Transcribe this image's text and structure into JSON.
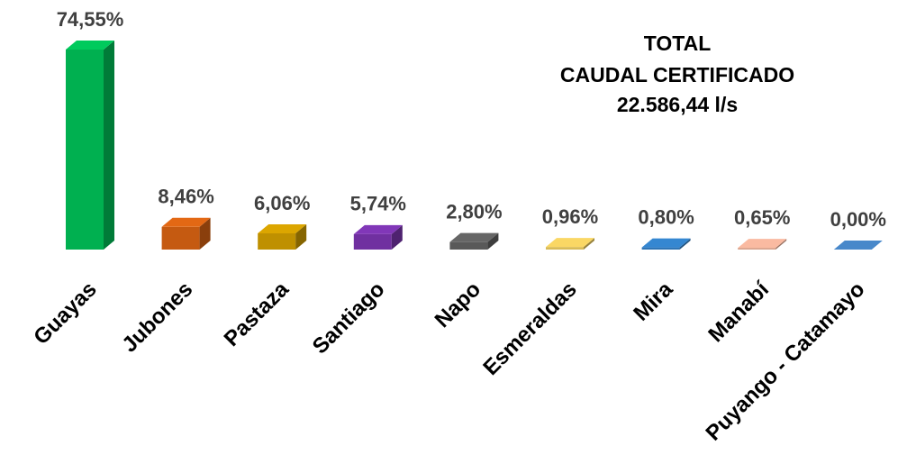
{
  "chart_data": {
    "type": "bar3d",
    "title_lines": [
      "TOTAL",
      "CAUDAL CERTIFICADO",
      "22.586,44 l/s"
    ],
    "categories": [
      "Guayas",
      "Jubones",
      "Pastaza",
      "Santiago",
      "Napo",
      "Esmeraldas",
      "Mira",
      "Manabí",
      "Puyango - Catamayo"
    ],
    "values": [
      74.55,
      8.46,
      6.06,
      5.74,
      2.8,
      0.96,
      0.8,
      0.65,
      0.0
    ],
    "value_labels": [
      "74,55%",
      "8,46%",
      "6,06%",
      "5,74%",
      "2,80%",
      "0,96%",
      "0,80%",
      "0,65%",
      "0,00%"
    ],
    "colors": [
      "#00b050",
      "#c55a11",
      "#bf9000",
      "#7030a0",
      "#595959",
      "#d9bb57",
      "#2e75b6",
      "#d9a28c",
      "#3f76b0"
    ]
  }
}
